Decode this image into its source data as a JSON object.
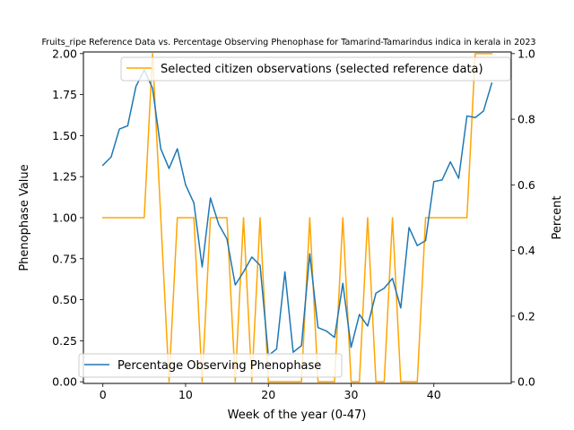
{
  "chart_data": {
    "type": "line",
    "title": "Fruits_ripe Reference Data vs. Percentage Observing Phenophase for Tamarind-Tamarindus indica in kerala in 2023",
    "xlabel": "Week of the year (0-47)",
    "ylabel_left": "Phenophase Value",
    "ylabel_right": "Percent",
    "xlim": [
      -2.35,
      49.35
    ],
    "ylim_left": [
      -0.01,
      2.01
    ],
    "ylim_right": [
      -0.005,
      1.005
    ],
    "xticks": [
      0,
      10,
      20,
      30,
      40
    ],
    "xtick_labels": [
      "0",
      "10",
      "20",
      "30",
      "40"
    ],
    "yticks_left": [
      0.0,
      0.25,
      0.5,
      0.75,
      1.0,
      1.25,
      1.5,
      1.75,
      2.0
    ],
    "ytick_labels_left": [
      "0.00",
      "0.25",
      "0.50",
      "0.75",
      "1.00",
      "1.25",
      "1.50",
      "1.75",
      "2.00"
    ],
    "yticks_right": [
      0.0,
      0.2,
      0.4,
      0.6,
      0.8,
      1.0
    ],
    "ytick_labels_right": [
      "0.0",
      "0.2",
      "0.4",
      "0.6",
      "0.8",
      "1.0"
    ],
    "grid": false,
    "series": [
      {
        "name": "Selected citizen observations (selected reference data)",
        "axis": "left",
        "color": "#FFA500",
        "legend_position": "upper-right",
        "x": [
          0,
          1,
          2,
          3,
          4,
          5,
          6,
          7,
          8,
          9,
          10,
          11,
          12,
          13,
          14,
          15,
          16,
          17,
          18,
          19,
          20,
          21,
          22,
          23,
          24,
          25,
          26,
          27,
          28,
          29,
          30,
          31,
          32,
          33,
          34,
          35,
          36,
          37,
          38,
          39,
          40,
          41,
          42,
          43,
          44,
          45,
          46,
          47
        ],
        "values": [
          1,
          1,
          1,
          1,
          1,
          1,
          2,
          1,
          0,
          1,
          1,
          1,
          0,
          1,
          1,
          1,
          0,
          1,
          0,
          1,
          0,
          0,
          0,
          0,
          0,
          1,
          0,
          0,
          0,
          1,
          0,
          0,
          1,
          0,
          0,
          1,
          0,
          0,
          0,
          1,
          1,
          1,
          1,
          1,
          1,
          2,
          2,
          2
        ]
      },
      {
        "name": "Percentage Observing Phenophase",
        "axis": "right",
        "color": "#1f77b4",
        "legend_position": "lower-left",
        "x": [
          0,
          1,
          2,
          3,
          4,
          5,
          6,
          7,
          8,
          9,
          10,
          11,
          12,
          13,
          14,
          15,
          16,
          17,
          18,
          19,
          20,
          21,
          22,
          23,
          24,
          25,
          26,
          27,
          28,
          29,
          30,
          31,
          32,
          33,
          34,
          35,
          36,
          37,
          38,
          39,
          40,
          41,
          42,
          43,
          44,
          45,
          46,
          47
        ],
        "values": [
          0.66,
          0.685,
          0.77,
          0.78,
          0.9,
          0.95,
          0.895,
          0.71,
          0.65,
          0.71,
          0.6,
          0.545,
          0.35,
          0.56,
          0.48,
          0.435,
          0.295,
          0.335,
          0.38,
          0.355,
          0.08,
          0.1,
          0.335,
          0.09,
          0.11,
          0.39,
          0.165,
          0.155,
          0.135,
          0.3,
          0.105,
          0.205,
          0.17,
          0.27,
          0.285,
          0.315,
          0.225,
          0.47,
          0.415,
          0.43,
          0.61,
          0.615,
          0.67,
          0.62,
          0.81,
          0.805,
          0.825,
          0.91
        ]
      }
    ]
  }
}
